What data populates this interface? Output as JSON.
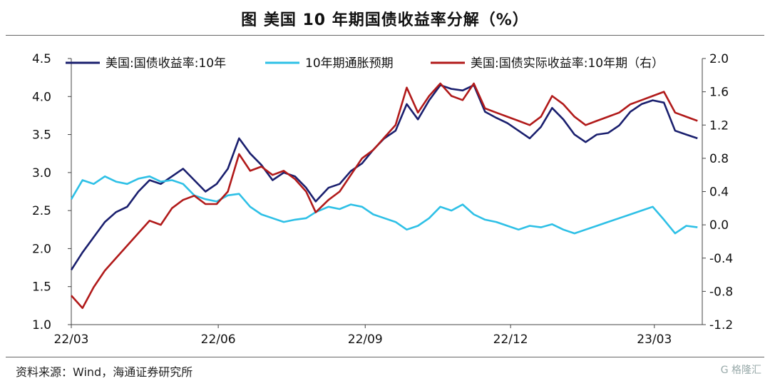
{
  "title": "图  美国 10 年期国债收益率分解（%）",
  "source": "资料来源：Wind，海通证券研究所",
  "watermark": "G 格隆汇",
  "chart_data": {
    "type": "line",
    "legend_position": "top",
    "grid": false,
    "x_labels": [
      "22/03",
      "22/06",
      "22/09",
      "22/12",
      "23/03"
    ],
    "x_range": [
      "2022-03-01",
      "2023-03-31"
    ],
    "y_left": {
      "range": [
        1.0,
        4.5
      ],
      "ticks": [
        "1.0",
        "1.5",
        "2.0",
        "2.5",
        "3.0",
        "3.5",
        "4.0",
        "4.5"
      ]
    },
    "y_right": {
      "range": [
        -1.2,
        2.0
      ],
      "ticks": [
        "-1.2",
        "-0.8",
        "-0.4",
        "0.0",
        "0.4",
        "0.8",
        "1.2",
        "1.6",
        "2.0"
      ]
    },
    "series": [
      {
        "name": "美国:国债收益率:10年",
        "axis": "left",
        "color": "#1a1f6e",
        "x": [
          "2022-03-01",
          "2022-03-08",
          "2022-03-15",
          "2022-03-22",
          "2022-03-29",
          "2022-04-05",
          "2022-04-12",
          "2022-04-19",
          "2022-04-26",
          "2022-05-03",
          "2022-05-10",
          "2022-05-17",
          "2022-05-24",
          "2022-05-31",
          "2022-06-07",
          "2022-06-14",
          "2022-06-21",
          "2022-06-28",
          "2022-07-05",
          "2022-07-12",
          "2022-07-19",
          "2022-07-26",
          "2022-08-01",
          "2022-08-09",
          "2022-08-16",
          "2022-08-23",
          "2022-08-30",
          "2022-09-06",
          "2022-09-13",
          "2022-09-20",
          "2022-09-27",
          "2022-10-04",
          "2022-10-11",
          "2022-10-18",
          "2022-10-25",
          "2022-11-01",
          "2022-11-08",
          "2022-11-15",
          "2022-11-22",
          "2022-11-29",
          "2022-12-06",
          "2022-12-13",
          "2022-12-20",
          "2022-12-27",
          "2023-01-03",
          "2023-01-10",
          "2023-01-17",
          "2023-01-24",
          "2023-01-31",
          "2023-02-07",
          "2023-02-14",
          "2023-02-21",
          "2023-02-28",
          "2023-03-07",
          "2023-03-14",
          "2023-03-21",
          "2023-03-28"
        ],
        "values": [
          1.72,
          1.95,
          2.15,
          2.35,
          2.48,
          2.55,
          2.75,
          2.9,
          2.85,
          2.95,
          3.05,
          2.9,
          2.75,
          2.85,
          3.05,
          3.45,
          3.25,
          3.1,
          2.9,
          3.0,
          2.95,
          2.8,
          2.62,
          2.8,
          2.85,
          3.02,
          3.12,
          3.3,
          3.45,
          3.55,
          3.9,
          3.7,
          3.95,
          4.15,
          4.1,
          4.08,
          4.15,
          3.8,
          3.72,
          3.65,
          3.55,
          3.45,
          3.6,
          3.85,
          3.7,
          3.5,
          3.4,
          3.5,
          3.52,
          3.62,
          3.8,
          3.9,
          3.95,
          3.92,
          3.55,
          3.5,
          3.45
        ]
      },
      {
        "name": "10年期通胀预期",
        "axis": "left",
        "color": "#2ec0e6",
        "x": [
          "2022-03-01",
          "2022-03-08",
          "2022-03-15",
          "2022-03-22",
          "2022-03-29",
          "2022-04-05",
          "2022-04-12",
          "2022-04-19",
          "2022-04-26",
          "2022-05-03",
          "2022-05-10",
          "2022-05-17",
          "2022-05-24",
          "2022-05-31",
          "2022-06-07",
          "2022-06-14",
          "2022-06-21",
          "2022-06-28",
          "2022-07-05",
          "2022-07-12",
          "2022-07-19",
          "2022-07-26",
          "2022-08-01",
          "2022-08-09",
          "2022-08-16",
          "2022-08-23",
          "2022-08-30",
          "2022-09-06",
          "2022-09-13",
          "2022-09-20",
          "2022-09-27",
          "2022-10-04",
          "2022-10-11",
          "2022-10-18",
          "2022-10-25",
          "2022-11-01",
          "2022-11-08",
          "2022-11-15",
          "2022-11-22",
          "2022-11-29",
          "2022-12-06",
          "2022-12-13",
          "2022-12-20",
          "2022-12-27",
          "2023-01-03",
          "2023-01-10",
          "2023-01-17",
          "2023-01-24",
          "2023-01-31",
          "2023-02-07",
          "2023-02-14",
          "2023-02-21",
          "2023-02-28",
          "2023-03-07",
          "2023-03-14",
          "2023-03-21",
          "2023-03-28"
        ],
        "values": [
          2.65,
          2.9,
          2.85,
          2.95,
          2.88,
          2.85,
          2.92,
          2.95,
          2.88,
          2.9,
          2.85,
          2.7,
          2.65,
          2.62,
          2.7,
          2.72,
          2.55,
          2.45,
          2.4,
          2.35,
          2.38,
          2.4,
          2.48,
          2.55,
          2.52,
          2.58,
          2.55,
          2.45,
          2.4,
          2.35,
          2.25,
          2.3,
          2.4,
          2.55,
          2.5,
          2.58,
          2.45,
          2.38,
          2.35,
          2.3,
          2.25,
          2.3,
          2.28,
          2.32,
          2.25,
          2.2,
          2.25,
          2.3,
          2.35,
          2.4,
          2.45,
          2.5,
          2.55,
          2.38,
          2.2,
          2.3,
          2.28
        ]
      },
      {
        "name": "美国:国债实际收益率:10年期（右）",
        "axis": "right",
        "color": "#b11a1a",
        "x": [
          "2022-03-01",
          "2022-03-08",
          "2022-03-15",
          "2022-03-22",
          "2022-03-29",
          "2022-04-05",
          "2022-04-12",
          "2022-04-19",
          "2022-04-26",
          "2022-05-03",
          "2022-05-10",
          "2022-05-17",
          "2022-05-24",
          "2022-05-31",
          "2022-06-07",
          "2022-06-14",
          "2022-06-21",
          "2022-06-28",
          "2022-07-05",
          "2022-07-12",
          "2022-07-19",
          "2022-07-26",
          "2022-08-01",
          "2022-08-09",
          "2022-08-16",
          "2022-08-23",
          "2022-08-30",
          "2022-09-06",
          "2022-09-13",
          "2022-09-20",
          "2022-09-27",
          "2022-10-04",
          "2022-10-11",
          "2022-10-18",
          "2022-10-25",
          "2022-11-01",
          "2022-11-08",
          "2022-11-15",
          "2022-11-22",
          "2022-11-29",
          "2022-12-06",
          "2022-12-13",
          "2022-12-20",
          "2022-12-27",
          "2023-01-03",
          "2023-01-10",
          "2023-01-17",
          "2023-01-24",
          "2023-01-31",
          "2023-02-07",
          "2023-02-14",
          "2023-02-21",
          "2023-02-28",
          "2023-03-07",
          "2023-03-14",
          "2023-03-21",
          "2023-03-28"
        ],
        "values": [
          -0.85,
          -1.0,
          -0.75,
          -0.55,
          -0.4,
          -0.25,
          -0.1,
          0.05,
          0.0,
          0.2,
          0.3,
          0.35,
          0.25,
          0.25,
          0.4,
          0.85,
          0.65,
          0.7,
          0.6,
          0.65,
          0.55,
          0.4,
          0.15,
          0.3,
          0.4,
          0.6,
          0.8,
          0.9,
          1.05,
          1.2,
          1.65,
          1.35,
          1.55,
          1.7,
          1.55,
          1.5,
          1.7,
          1.4,
          1.35,
          1.3,
          1.25,
          1.2,
          1.3,
          1.55,
          1.45,
          1.3,
          1.2,
          1.25,
          1.3,
          1.35,
          1.45,
          1.5,
          1.55,
          1.6,
          1.35,
          1.3,
          1.25
        ]
      }
    ]
  }
}
